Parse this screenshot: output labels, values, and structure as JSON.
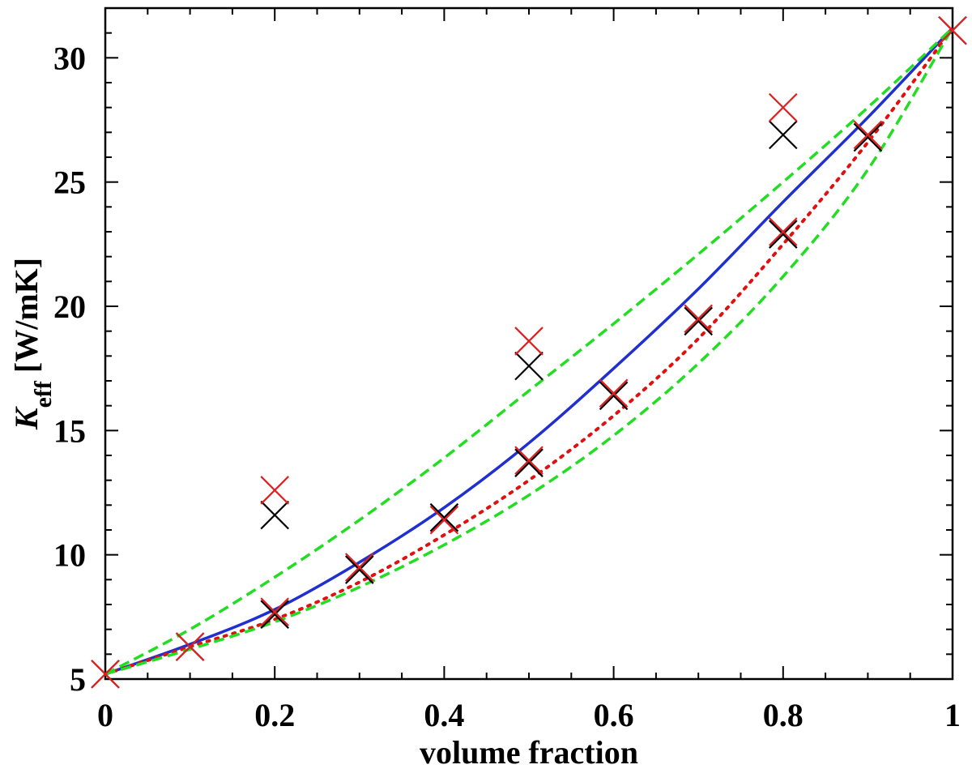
{
  "chart_data": {
    "type": "scatter",
    "title": "",
    "xlabel": "volume fraction",
    "ylabel": {
      "main": "K",
      "subscript": "eff",
      "unit": " [W/mK]"
    },
    "xlim": [
      0,
      1
    ],
    "ylim": [
      5,
      32
    ],
    "x_ticks": [
      0,
      0.2,
      0.4,
      0.6,
      0.8,
      1
    ],
    "x_tick_labels": [
      "0",
      "0.2",
      "0.4",
      "0.6",
      "0.8",
      "1"
    ],
    "y_ticks": [
      5,
      10,
      15,
      20,
      25,
      30
    ],
    "y_tick_labels": [
      "5",
      "10",
      "15",
      "20",
      "25",
      "30"
    ],
    "grid": false,
    "legend": "none",
    "colors": {
      "solid_curve": "#1f2fd0",
      "dotted_curve": "#e01010",
      "dashed_bounds": "#22dd22",
      "marker_black": "#000000",
      "marker_red": "#e02020"
    },
    "series": [
      {
        "style": "line-solid",
        "color": "#1f2fd0",
        "x": [
          0,
          0.1,
          0.2,
          0.3,
          0.4,
          0.5,
          0.6,
          0.7,
          0.8,
          0.9,
          1.0
        ],
        "y": [
          5.2,
          6.4,
          7.8,
          9.7,
          11.9,
          14.5,
          17.5,
          20.7,
          24.2,
          27.6,
          31.2
        ]
      },
      {
        "style": "line-dotted",
        "color": "#e01010",
        "x": [
          0,
          0.1,
          0.2,
          0.3,
          0.4,
          0.5,
          0.6,
          0.7,
          0.8,
          0.9,
          1.0
        ],
        "y": [
          5.2,
          6.3,
          7.4,
          8.9,
          10.8,
          13.0,
          15.6,
          18.7,
          22.5,
          26.6,
          31.2
        ]
      },
      {
        "style": "line-dashed",
        "color": "#22dd22",
        "x": [
          0,
          0.1,
          0.2,
          0.3,
          0.4,
          0.5,
          0.6,
          0.7,
          0.8,
          0.9,
          1.0
        ],
        "y": [
          5.2,
          7.0,
          9.1,
          11.4,
          13.9,
          16.6,
          19.3,
          22.1,
          25.0,
          28.0,
          31.2
        ]
      },
      {
        "style": "line-dashed",
        "color": "#22dd22",
        "x": [
          0,
          0.1,
          0.2,
          0.3,
          0.4,
          0.5,
          0.6,
          0.7,
          0.8,
          0.9,
          1.0
        ],
        "y": [
          5.2,
          6.2,
          7.3,
          8.7,
          10.4,
          12.4,
          14.8,
          17.7,
          21.2,
          25.5,
          31.2
        ]
      },
      {
        "style": "marker-x",
        "color": "#000000",
        "x": [
          0,
          0.1,
          0.2,
          0.2,
          0.3,
          0.4,
          0.5,
          0.5,
          0.6,
          0.7,
          0.8,
          0.8,
          0.9,
          1.0
        ],
        "y": [
          5.2,
          6.3,
          7.6,
          11.6,
          9.4,
          11.5,
          13.7,
          17.6,
          16.4,
          19.4,
          22.9,
          26.9,
          26.8,
          31.1
        ]
      },
      {
        "style": "marker-x",
        "color": "#e02020",
        "x": [
          0,
          0.1,
          0.2,
          0.2,
          0.3,
          0.4,
          0.5,
          0.5,
          0.6,
          0.7,
          0.8,
          0.8,
          0.9,
          1.0
        ],
        "y": [
          5.2,
          6.3,
          7.7,
          12.6,
          9.5,
          11.4,
          13.8,
          18.6,
          16.5,
          19.5,
          23.0,
          28.0,
          26.9,
          31.1
        ]
      }
    ]
  }
}
